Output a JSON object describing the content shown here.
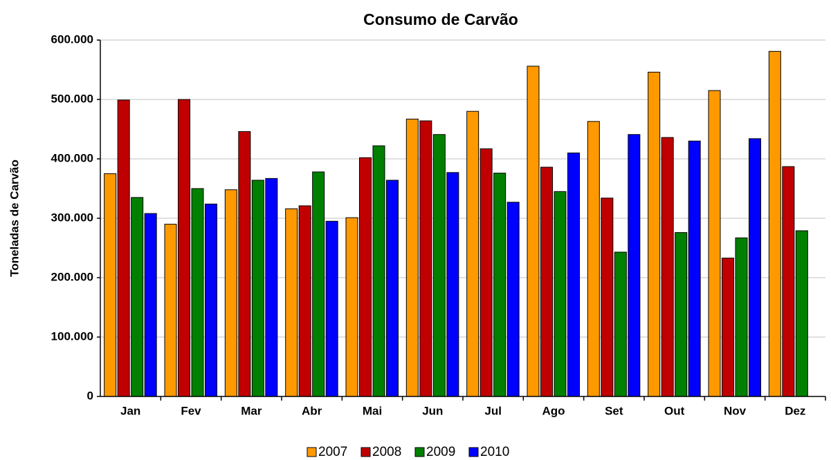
{
  "chart_data": {
    "type": "bar",
    "title": "Consumo de Carvão",
    "ylabel": "Toneladas de Carvão",
    "categories": [
      "Jan",
      "Fev",
      "Mar",
      "Abr",
      "Mai",
      "Jun",
      "Jul",
      "Ago",
      "Set",
      "Out",
      "Nov",
      "Dez"
    ],
    "series": [
      {
        "name": "2007",
        "color": "#ff9900",
        "values": [
          375000,
          290000,
          348000,
          316000,
          301000,
          467000,
          480000,
          556000,
          463000,
          546000,
          515000,
          581000
        ]
      },
      {
        "name": "2008",
        "color": "#c00000",
        "values": [
          499000,
          500000,
          446000,
          321000,
          402000,
          464000,
          417000,
          386000,
          334000,
          436000,
          233000,
          387000
        ]
      },
      {
        "name": "2009",
        "color": "#008000",
        "values": [
          335000,
          350000,
          364000,
          378000,
          422000,
          441000,
          376000,
          345000,
          243000,
          276000,
          267000,
          279000
        ]
      },
      {
        "name": "2010",
        "color": "#0000ff",
        "values": [
          308000,
          324000,
          367000,
          295000,
          364000,
          377000,
          327000,
          410000,
          441000,
          430000,
          434000,
          null
        ]
      }
    ],
    "ylim": [
      0,
      600000
    ],
    "yticks": [
      0,
      {
        "value": 100000,
        "label": "100.000"
      },
      {
        "value": 200000,
        "label": "200.000"
      },
      {
        "value": 300000,
        "label": "300.000"
      },
      {
        "value": 400000,
        "label": "400.000"
      },
      {
        "value": 500000,
        "label": "500.000"
      },
      {
        "value": 600000,
        "label": "600.000"
      }
    ],
    "grid": true,
    "legend": "bottom"
  }
}
